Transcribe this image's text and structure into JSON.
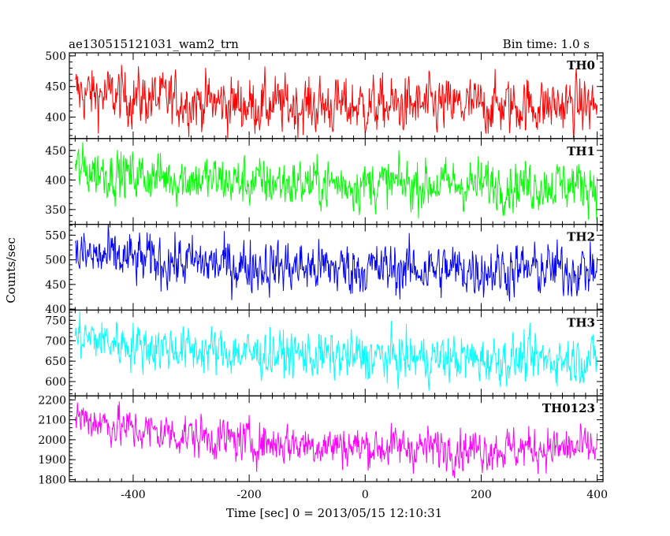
{
  "header": {
    "title": "ae130515121031_wam2_trn",
    "bin_time": "Bin time: 1.0 s"
  },
  "chart_data": {
    "type": "line",
    "xlabel": "Time [sec] 0 = 2013/05/15 12:10:31",
    "ylabel": "Counts/sec",
    "xlim": [
      -510,
      410
    ],
    "xticks": [
      -400,
      -200,
      0,
      200,
      400
    ],
    "panels": [
      {
        "name": "TH0",
        "color": "#ff0000",
        "ylim": [
          365,
          505
        ],
        "yticks": [
          400,
          450,
          500
        ],
        "trend": [
          [
            -500,
            440
          ],
          [
            -400,
            432
          ],
          [
            -200,
            420
          ],
          [
            0,
            418
          ],
          [
            200,
            418
          ],
          [
            400,
            420
          ]
        ],
        "noise": 24
      },
      {
        "name": "TH1",
        "color": "#00ff00",
        "ylim": [
          325,
          470
        ],
        "yticks": [
          350,
          400,
          450
        ],
        "trend": [
          [
            -500,
            418
          ],
          [
            -400,
            408
          ],
          [
            -200,
            396
          ],
          [
            0,
            393
          ],
          [
            200,
            392
          ],
          [
            400,
            392
          ]
        ],
        "noise": 22
      },
      {
        "name": "TH2",
        "color": "#0000ff",
        "ylim": [
          398,
          572
        ],
        "yticks": [
          400,
          450,
          500,
          550
        ],
        "trend": [
          [
            -500,
            510
          ],
          [
            -400,
            500
          ],
          [
            -200,
            488
          ],
          [
            0,
            482
          ],
          [
            200,
            480
          ],
          [
            400,
            480
          ]
        ],
        "noise": 28
      },
      {
        "name": "TH3",
        "color": "#00ffff",
        "ylim": [
          565,
          775
        ],
        "yticks": [
          600,
          650,
          700,
          750
        ],
        "trend": [
          [
            -500,
            710
          ],
          [
            -400,
            690
          ],
          [
            -200,
            668
          ],
          [
            0,
            660
          ],
          [
            200,
            655
          ],
          [
            400,
            655
          ]
        ],
        "noise": 30
      },
      {
        "name": "TH0123",
        "color": "#ff00ff",
        "ylim": [
          1790,
          2220
        ],
        "yticks": [
          1800,
          1900,
          2000,
          2100,
          2200
        ],
        "trend": [
          [
            -500,
            2120
          ],
          [
            -400,
            2050
          ],
          [
            -200,
            1990
          ],
          [
            0,
            1965
          ],
          [
            200,
            1955
          ],
          [
            400,
            1955
          ]
        ],
        "noise": 55
      }
    ]
  }
}
